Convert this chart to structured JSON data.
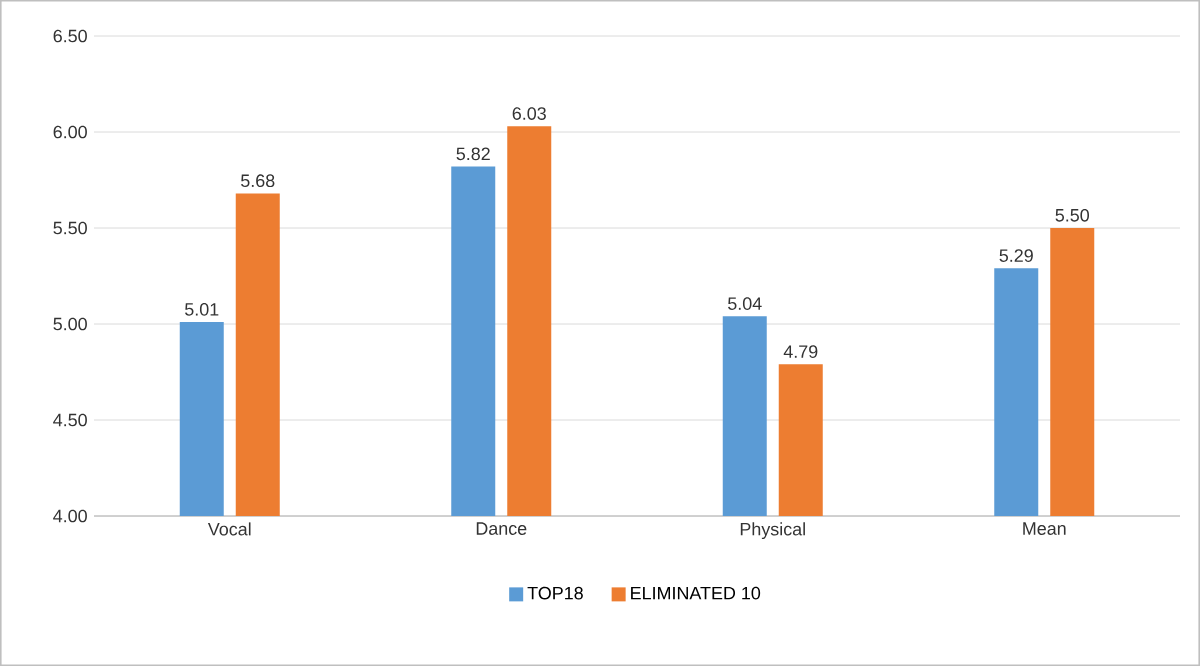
{
  "chart_data": {
    "type": "bar",
    "categories": [
      "Vocal",
      "Dance",
      "Physical",
      "Mean"
    ],
    "series": [
      {
        "name": "TOP18",
        "color": "#5b9bd5",
        "values": [
          5.01,
          5.82,
          5.04,
          5.29
        ],
        "value_labels": [
          "5.01",
          "5.82",
          "5.04",
          "5.29"
        ]
      },
      {
        "name": "ELIMINATED 10",
        "color": "#ed7d31",
        "values": [
          5.68,
          6.03,
          4.79,
          5.5
        ],
        "value_labels": [
          "5.68",
          "6.03",
          "4.79",
          "5.50"
        ]
      }
    ],
    "ylim": [
      4,
      6.5
    ],
    "yticks": [
      {
        "value": 4,
        "label": "4.00"
      },
      {
        "value": 4.5,
        "label": "4.50"
      },
      {
        "value": 5,
        "label": "5.00"
      },
      {
        "value": 5.5,
        "label": "5.50"
      },
      {
        "value": 6,
        "label": "6.00"
      },
      {
        "value": 6.5,
        "label": "6.50"
      }
    ],
    "grid": "y",
    "legend": "bottom"
  }
}
